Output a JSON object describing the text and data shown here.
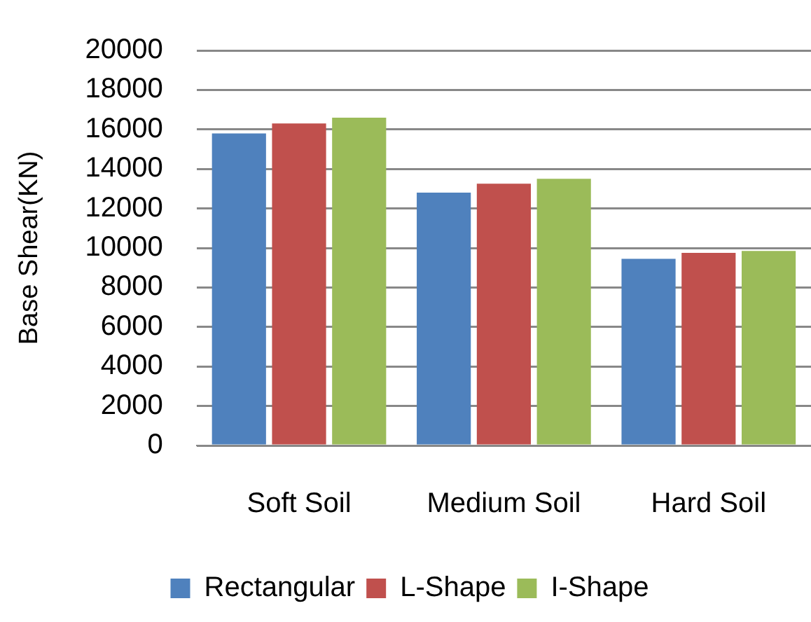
{
  "chart_data": {
    "type": "bar",
    "ylabel": "Base Shear(KN)",
    "categories": [
      "Soft Soil",
      "Medium Soil",
      "Hard Soil"
    ],
    "series": [
      {
        "name": "Rectangular",
        "color": "#4f81bd",
        "values": [
          15800,
          12800,
          9450
        ]
      },
      {
        "name": "L-Shape",
        "color": "#c0504d",
        "values": [
          16300,
          13250,
          9750
        ]
      },
      {
        "name": "I-Shape",
        "color": "#9bbb59",
        "values": [
          16600,
          13500,
          9850
        ]
      }
    ],
    "ylim": [
      0,
      20000
    ],
    "yticks": [
      0,
      2000,
      4000,
      6000,
      8000,
      10000,
      12000,
      14000,
      16000,
      18000,
      20000
    ],
    "grid": "y",
    "legend": "bottom"
  }
}
